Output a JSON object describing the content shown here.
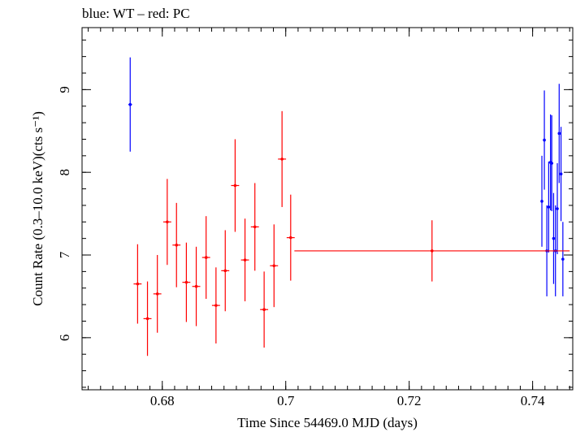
{
  "chart_data": {
    "type": "scatter",
    "title": "blue: WT – red: PC",
    "xlabel": "Time Since 54469.0 MJD (days)",
    "ylabel": "Count Rate (0.3–10.0 keV)(cts s⁻¹)",
    "xlim": [
      0.667,
      0.7465
    ],
    "ylim": [
      5.37,
      9.75
    ],
    "x_major_ticks": [
      0.68,
      0.7,
      0.72,
      0.74
    ],
    "x_tick_labels": [
      "0.68",
      "0.7",
      "0.72",
      "0.74"
    ],
    "x_minor_step": 0.002,
    "y_major_ticks": [
      6,
      7,
      8,
      9
    ],
    "y_tick_labels": [
      "6",
      "7",
      "8",
      "9"
    ],
    "y_minor_step": 0.2,
    "grid": false,
    "legend": "title text",
    "series": [
      {
        "color": "#0000ff",
        "points": [
          {
            "x": 0.6748,
            "y": 8.82,
            "xerr": 0.0003,
            "yerr": 0.57
          },
          {
            "x": 0.7415,
            "y": 7.65,
            "xerr": 0.0002,
            "yerr": 0.55
          },
          {
            "x": 0.7419,
            "y": 8.39,
            "xerr": 0.0002,
            "yerr": 0.6
          },
          {
            "x": 0.7423,
            "y": 7.05,
            "xerr": 0.0002,
            "yerr": 0.55
          },
          {
            "x": 0.7426,
            "y": 7.58,
            "xerr": 0.0002,
            "yerr": 0.55
          },
          {
            "x": 0.7429,
            "y": 8.12,
            "xerr": 0.0002,
            "yerr": 0.58
          },
          {
            "x": 0.7431,
            "y": 8.11,
            "xerr": 0.0002,
            "yerr": 0.58
          },
          {
            "x": 0.7434,
            "y": 7.2,
            "xerr": 0.0002,
            "yerr": 0.55
          },
          {
            "x": 0.7437,
            "y": 7.05,
            "xerr": 0.0002,
            "yerr": 0.55
          },
          {
            "x": 0.744,
            "y": 7.56,
            "xerr": 0.0002,
            "yerr": 0.55
          },
          {
            "x": 0.7443,
            "y": 8.47,
            "xerr": 0.0002,
            "yerr": 0.6
          },
          {
            "x": 0.7446,
            "y": 7.98,
            "xerr": 0.0002,
            "yerr": 0.57
          },
          {
            "x": 0.7449,
            "y": 6.95,
            "xerr": 0.0002,
            "yerr": 0.45
          }
        ]
      },
      {
        "color": "#ff0000",
        "points": [
          {
            "x": 0.676,
            "y": 6.65,
            "xerr": 0.00065,
            "yerr": 0.48
          },
          {
            "x": 0.6776,
            "y": 6.23,
            "xerr": 0.00065,
            "yerr": 0.45
          },
          {
            "x": 0.6792,
            "y": 6.53,
            "xerr": 0.00065,
            "yerr": 0.47
          },
          {
            "x": 0.6808,
            "y": 7.4,
            "xerr": 0.00065,
            "yerr": 0.52
          },
          {
            "x": 0.6823,
            "y": 7.12,
            "xerr": 0.00065,
            "yerr": 0.51
          },
          {
            "x": 0.6839,
            "y": 6.67,
            "xerr": 0.00065,
            "yerr": 0.48
          },
          {
            "x": 0.6855,
            "y": 6.62,
            "xerr": 0.00065,
            "yerr": 0.48
          },
          {
            "x": 0.6871,
            "y": 6.97,
            "xerr": 0.00065,
            "yerr": 0.5
          },
          {
            "x": 0.6887,
            "y": 6.39,
            "xerr": 0.00065,
            "yerr": 0.46
          },
          {
            "x": 0.6902,
            "y": 6.81,
            "xerr": 0.00065,
            "yerr": 0.49
          },
          {
            "x": 0.6918,
            "y": 7.84,
            "xerr": 0.00065,
            "yerr": 0.56
          },
          {
            "x": 0.6934,
            "y": 6.94,
            "xerr": 0.00065,
            "yerr": 0.5
          },
          {
            "x": 0.695,
            "y": 7.34,
            "xerr": 0.00065,
            "yerr": 0.53
          },
          {
            "x": 0.6965,
            "y": 6.34,
            "xerr": 0.00065,
            "yerr": 0.46
          },
          {
            "x": 0.6981,
            "y": 6.87,
            "xerr": 0.00065,
            "yerr": 0.5
          },
          {
            "x": 0.6994,
            "y": 8.16,
            "xerr": 0.00065,
            "yerr": 0.58
          },
          {
            "x": 0.7008,
            "y": 7.21,
            "xerr": 0.00065,
            "yerr": 0.52
          },
          {
            "x": 0.7237,
            "y": 7.05,
            "xerr": 0.0223,
            "yerr": 0.37
          }
        ]
      }
    ]
  }
}
